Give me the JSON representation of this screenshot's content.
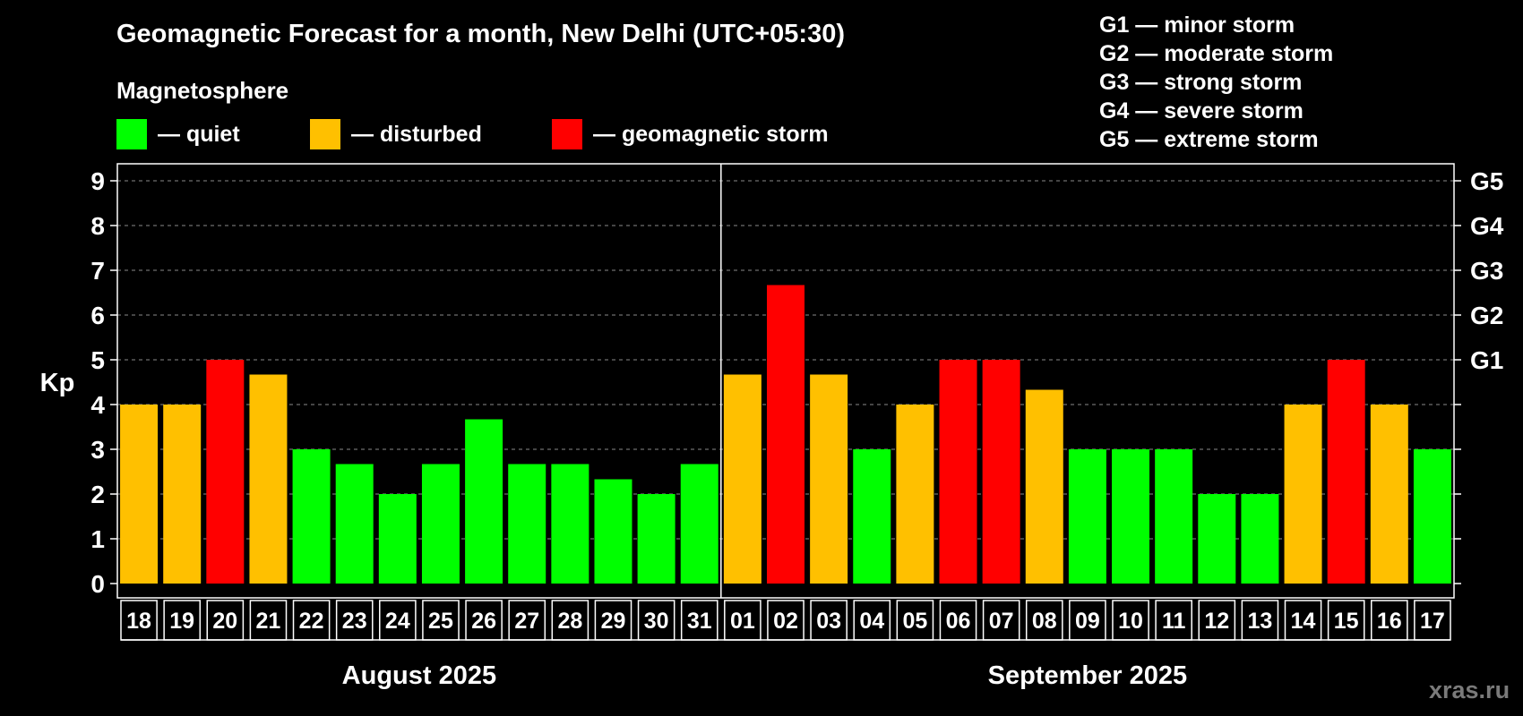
{
  "chart_data": {
    "type": "bar",
    "title": "Geomagnetic Forecast for a month, New Delhi (UTC+05:30)",
    "subtitle": "Magnetosphere",
    "ylabel": "Kp",
    "ylim": [
      0,
      9
    ],
    "yticks": [
      "0",
      "1",
      "2",
      "3",
      "4",
      "5",
      "6",
      "7",
      "8",
      "9"
    ],
    "right_ticks": [
      {
        "value": 5,
        "label": "G1"
      },
      {
        "value": 6,
        "label": "G2"
      },
      {
        "value": 7,
        "label": "G3"
      },
      {
        "value": 8,
        "label": "G4"
      },
      {
        "value": 9,
        "label": "G5"
      }
    ],
    "grid": true,
    "categories": [
      "18",
      "19",
      "20",
      "21",
      "22",
      "23",
      "24",
      "25",
      "26",
      "27",
      "28",
      "29",
      "30",
      "31",
      "01",
      "02",
      "03",
      "04",
      "05",
      "06",
      "07",
      "08",
      "09",
      "10",
      "11",
      "12",
      "13",
      "14",
      "15",
      "16",
      "17"
    ],
    "values": [
      4,
      4,
      5,
      4.67,
      3,
      2.67,
      2,
      2.67,
      3.67,
      2.67,
      2.67,
      2.33,
      2,
      2.67,
      4.67,
      6.67,
      4.67,
      3,
      4,
      5,
      5,
      4.33,
      3,
      3,
      3,
      2,
      2,
      4,
      5,
      4,
      3
    ],
    "levels": [
      "disturbed",
      "disturbed",
      "storm",
      "disturbed",
      "quiet",
      "quiet",
      "quiet",
      "quiet",
      "quiet",
      "quiet",
      "quiet",
      "quiet",
      "quiet",
      "quiet",
      "disturbed",
      "storm",
      "disturbed",
      "quiet",
      "disturbed",
      "storm",
      "storm",
      "disturbed",
      "quiet",
      "quiet",
      "quiet",
      "quiet",
      "quiet",
      "disturbed",
      "storm",
      "disturbed",
      "quiet"
    ],
    "months": [
      {
        "label": "August 2025",
        "start": 0,
        "count": 14
      },
      {
        "label": "September 2025",
        "start": 14,
        "count": 17
      }
    ]
  },
  "legend": [
    {
      "key": "quiet",
      "label": "— quiet",
      "color": "#00ff00"
    },
    {
      "key": "disturbed",
      "label": "— disturbed",
      "color": "#ffc000"
    },
    {
      "key": "storm",
      "label": "— geomagnetic storm",
      "color": "#ff0000"
    }
  ],
  "g_scale": [
    "G1 — minor storm",
    "G2 — moderate storm",
    "G3 — strong storm",
    "G4 — severe storm",
    "G5 — extreme storm"
  ],
  "watermark": "xras.ru"
}
